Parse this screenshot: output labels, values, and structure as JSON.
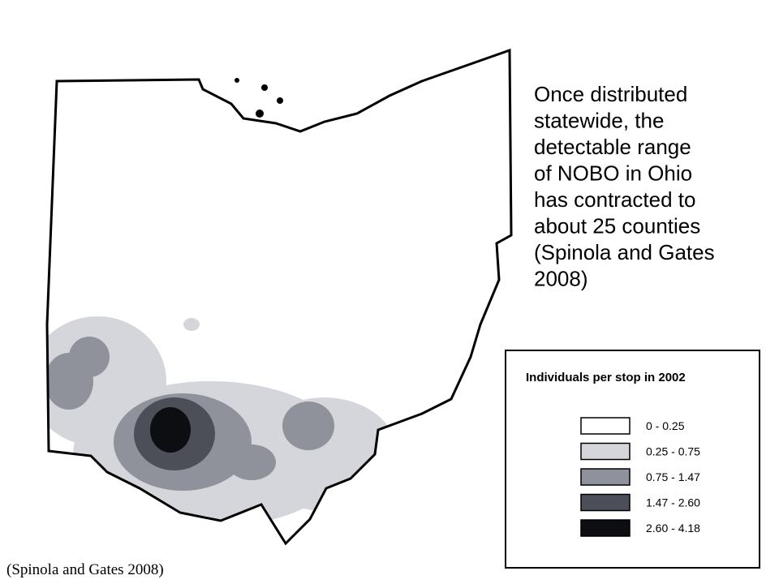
{
  "slide": {
    "body_lines": [
      "Once distributed",
      "statewide, the",
      "detectable range",
      "of NOBO in Ohio",
      "has contracted to",
      "about 25 counties",
      "(Spinola and Gates",
      "2008)"
    ],
    "citation": "(Spinola and Gates 2008)"
  },
  "legend": {
    "title": "Individuals per stop in 2002",
    "items": [
      {
        "label": "0 - 0.25",
        "color": "#ffffff"
      },
      {
        "label": "0.25 - 0.75",
        "color": "#d4d6dc"
      },
      {
        "label": "0.75 - 1.47",
        "color": "#8f929a"
      },
      {
        "label": "1.47 - 2.60",
        "color": "#4c4f57"
      },
      {
        "label": "2.60 - 4.18",
        "color": "#0d0e12"
      }
    ]
  }
}
